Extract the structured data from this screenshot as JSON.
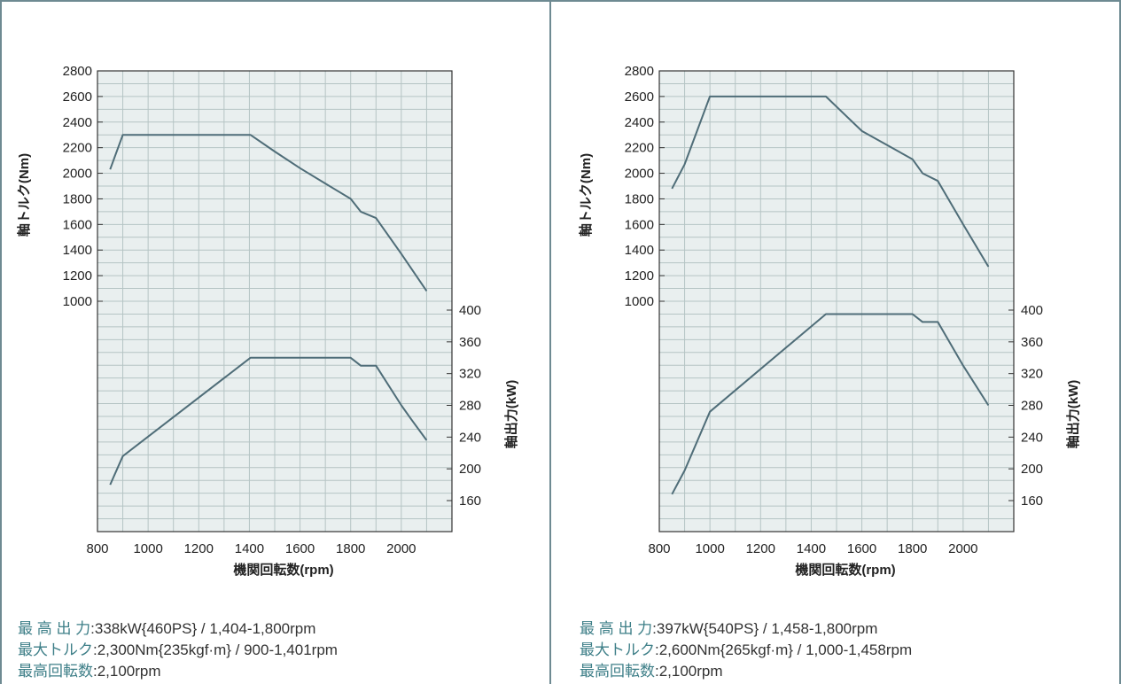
{
  "colors": {
    "line": "#4f6d78",
    "grid": "#b5c4c4",
    "plot_bg": "#e9efef",
    "accent": "#3e7f88"
  },
  "chart_data": [
    {
      "type": "line",
      "xlabel": "機関回転数(rpm)",
      "ylabel_left": "軸トルク(Nm)",
      "ylabel_right": "軸出力(kW)",
      "x_range": [
        800,
        2200
      ],
      "x_ticks": [
        "800",
        "1000",
        "1200",
        "1400",
        "1600",
        "1800",
        "2000"
      ],
      "y_left_ticks": [
        "2800",
        "2600",
        "2400",
        "2200",
        "2000",
        "1800",
        "1600",
        "1400",
        "1200",
        "1000"
      ],
      "y_right_ticks": [
        "400",
        "360",
        "320",
        "280",
        "240",
        "200",
        "160"
      ],
      "grid": true,
      "series": [
        {
          "axis": "left",
          "x": [
            850,
            900,
            1404,
            1500,
            1600,
            1700,
            1800,
            1840,
            1900,
            2000,
            2100
          ],
          "values": [
            2030,
            2300,
            2300,
            2170,
            2040,
            1920,
            1800,
            1700,
            1650,
            1370,
            1080
          ]
        },
        {
          "axis": "right",
          "x": [
            850,
            900,
            1404,
            1800,
            1840,
            1900,
            2000,
            2040,
            2100
          ],
          "values": [
            180,
            216,
            340,
            340,
            330,
            330,
            280,
            262,
            236
          ]
        }
      ]
    },
    {
      "type": "line",
      "xlabel": "機関回転数(rpm)",
      "ylabel_left": "軸トルク(Nm)",
      "ylabel_right": "軸出力(kW)",
      "x_range": [
        800,
        2200
      ],
      "x_ticks": [
        "800",
        "1000",
        "1200",
        "1400",
        "1600",
        "1800",
        "2000"
      ],
      "y_left_ticks": [
        "2800",
        "2600",
        "2400",
        "2200",
        "2000",
        "1800",
        "1600",
        "1400",
        "1200",
        "1000"
      ],
      "y_right_ticks": [
        "400",
        "360",
        "320",
        "280",
        "240",
        "200",
        "160"
      ],
      "grid": true,
      "series": [
        {
          "axis": "left",
          "x": [
            850,
            900,
            1000,
            1458,
            1600,
            1700,
            1800,
            1840,
            1900,
            2000,
            2100
          ],
          "values": [
            1880,
            2070,
            2600,
            2600,
            2330,
            2220,
            2110,
            2000,
            1940,
            1600,
            1270
          ]
        },
        {
          "axis": "right",
          "x": [
            850,
            900,
            1000,
            1458,
            1800,
            1840,
            1900,
            2000,
            2100
          ],
          "values": [
            168,
            198,
            272,
            395,
            395,
            385,
            385,
            330,
            280
          ]
        }
      ]
    }
  ],
  "specs": [
    [
      {
        "label": "最 高 出 力",
        "value": ":338kW{460PS} / 1,404-1,800rpm"
      },
      {
        "label": "最大トルク",
        "value": ":2,300Nm{235kgf·m} / 900-1,401rpm"
      },
      {
        "label": "最高回転数",
        "value": ":2,100rpm"
      }
    ],
    [
      {
        "label": "最 高 出 力",
        "value": ":397kW{540PS} / 1,458-1,800rpm"
      },
      {
        "label": "最大トルク",
        "value": ":2,600Nm{265kgf·m} / 1,000-1,458rpm"
      },
      {
        "label": "最高回転数",
        "value": ":2,100rpm"
      }
    ]
  ]
}
